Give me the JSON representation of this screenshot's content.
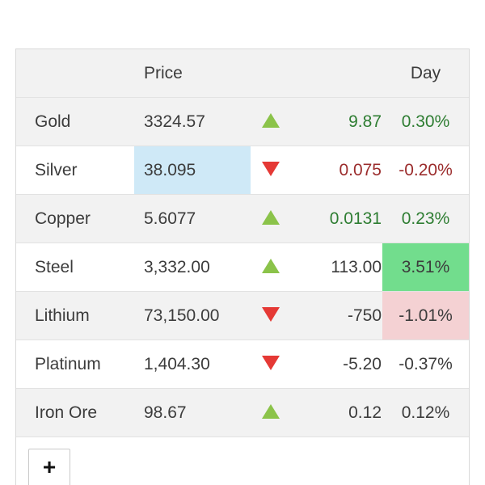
{
  "header": {
    "price_label": "Price",
    "day_label": "Day"
  },
  "rows": [
    {
      "name": "Gold",
      "price": "3324.57",
      "direction": "up",
      "change": "9.87",
      "pct": "0.30%"
    },
    {
      "name": "Silver",
      "price": "38.095",
      "direction": "down",
      "change": "0.075",
      "pct": "-0.20%"
    },
    {
      "name": "Copper",
      "price": "5.6077",
      "direction": "up",
      "change": "0.0131",
      "pct": "0.23%"
    },
    {
      "name": "Steel",
      "price": "3,332.00",
      "direction": "up",
      "change": "113.00",
      "pct": "3.51%"
    },
    {
      "name": "Lithium",
      "price": "73,150.00",
      "direction": "down",
      "change": "-750",
      "pct": "-1.01%"
    },
    {
      "name": "Platinum",
      "price": "1,404.30",
      "direction": "down",
      "change": "-5.20",
      "pct": "-0.37%"
    },
    {
      "name": "Iron Ore",
      "price": "98.67",
      "direction": "up",
      "change": "0.12",
      "pct": "0.12%"
    }
  ],
  "add_button": {
    "label": "+"
  },
  "colors": {
    "up_arrow": "#8bc34a",
    "down_arrow": "#e53935",
    "positive_text": "#2e7d32",
    "negative_text": "#9b2c2c",
    "price_highlight": "#cfe9f7",
    "positive_highlight": "#72dd8d",
    "negative_highlight": "#f4d1d3"
  }
}
